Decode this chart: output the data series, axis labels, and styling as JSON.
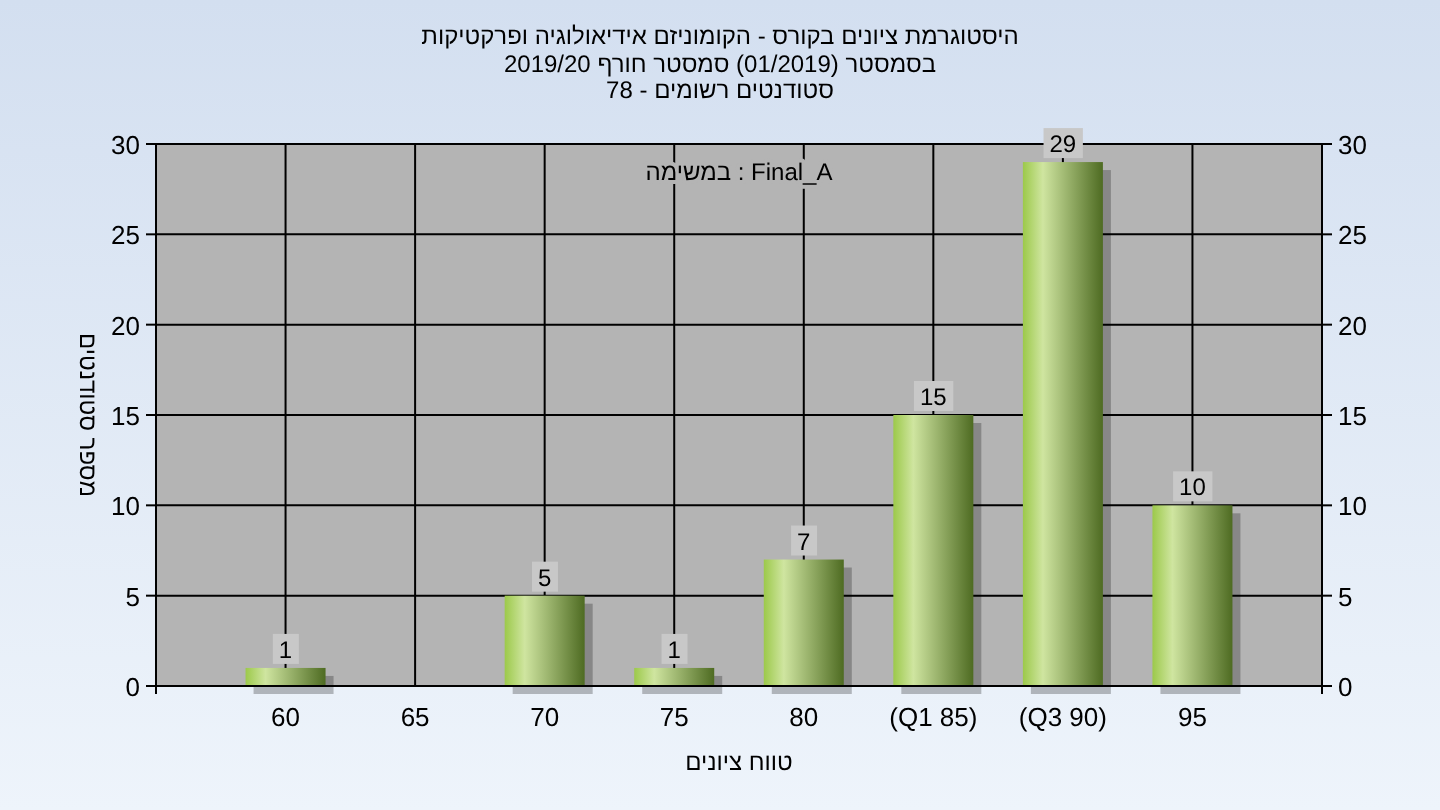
{
  "chart_data": {
    "type": "bar",
    "title": "היסטוגרמת ציונים בקורס - הקומוניזם אידיאולוגיה ופרקטיקות",
    "subtitle": "בסמסטר  (01/2019)  סמסטר חורף 2019/20\nסטודנטים רשומים - 78",
    "xlabel": "טווח ציונים",
    "ylabel": "מספר סטודנטים",
    "annotations": [
      "במשימה : Final_A"
    ],
    "categories": [
      "60",
      "65",
      "70",
      "75",
      "80",
      "(Q1 85)",
      "(Q3 90)",
      "95"
    ],
    "values": [
      1,
      0,
      5,
      1,
      7,
      15,
      29,
      10
    ],
    "value_labels": [
      "1",
      null,
      "5",
      "1",
      "7",
      "15",
      "29",
      "10"
    ],
    "color": "#9cc94a",
    "ylim": [
      0,
      30
    ],
    "yticks": [
      0,
      5,
      10,
      15,
      20,
      25,
      30
    ],
    "y2lim": [
      0,
      30
    ],
    "y2ticks": [
      0,
      5,
      10,
      15,
      20,
      25,
      30
    ],
    "grid": true,
    "legend": false
  }
}
